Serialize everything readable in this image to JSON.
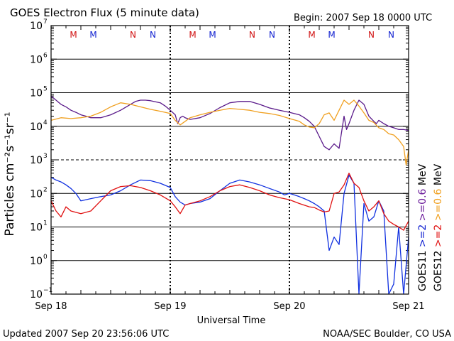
{
  "header": {
    "title": "GOES Electron Flux (5 minute data)",
    "begin": "Begin: 2007 Sep 18 0000 UTC"
  },
  "footer": {
    "updated": "Updated 2007 Sep 20 23:56:06 UTC",
    "source": "NOAA/SEC Boulder, CO USA"
  },
  "chart_data": {
    "type": "line",
    "title": "GOES Electron Flux (5 minute data)",
    "xlabel": "Universal Time",
    "ylabel": "Particles cm⁻²s⁻¹sr⁻¹",
    "yscale": "log",
    "ylim": [
      0.1,
      10000000
    ],
    "xlim": [
      0,
      72
    ],
    "x_unit": "hours since 2007 Sep 18 0000 UTC",
    "x_ticks": [
      {
        "x": 0,
        "label": "Sep 18"
      },
      {
        "x": 24,
        "label": "Sep 19"
      },
      {
        "x": 48,
        "label": "Sep 20"
      },
      {
        "x": 72,
        "label": "Sep 21"
      }
    ],
    "y_ticks": [
      {
        "exp": 7
      },
      {
        "exp": 6
      },
      {
        "exp": 5
      },
      {
        "exp": 4
      },
      {
        "exp": 3
      },
      {
        "exp": 2
      },
      {
        "exp": 1
      },
      {
        "exp": 0
      },
      {
        "exp": -1
      }
    ],
    "grid": true,
    "dashed_grid_exp": [
      3
    ],
    "magnetopause_markers": [
      {
        "x": 4.5,
        "label": "M",
        "color": "#d01010"
      },
      {
        "x": 8.5,
        "label": "M",
        "color": "#1020d0"
      },
      {
        "x": 16.5,
        "label": "N",
        "color": "#d01010"
      },
      {
        "x": 20.5,
        "label": "N",
        "color": "#1020d0"
      },
      {
        "x": 28.5,
        "label": "M",
        "color": "#d01010"
      },
      {
        "x": 32.5,
        "label": "M",
        "color": "#1020d0"
      },
      {
        "x": 40.5,
        "label": "N",
        "color": "#d01010"
      },
      {
        "x": 44.5,
        "label": "N",
        "color": "#1020d0"
      },
      {
        "x": 52.5,
        "label": "M",
        "color": "#d01010"
      },
      {
        "x": 56.5,
        "label": "M",
        "color": "#1020d0"
      },
      {
        "x": 64.5,
        "label": "N",
        "color": "#d01010"
      },
      {
        "x": 68.5,
        "label": "N",
        "color": "#1020d0"
      }
    ],
    "right_labels": [
      {
        "satellite": "GOES11",
        "low": ">=2",
        "high": ">=0.6",
        "unit": "MeV",
        "color_low": "#1020d0",
        "color_high": "#6a1a9a"
      },
      {
        "satellite": "GOES12",
        "low": ">=2",
        "high": ">=0.6",
        "unit": "MeV",
        "color_low": "#e01010",
        "color_high": "#f0a020"
      }
    ],
    "series": [
      {
        "name": ">=0.6 MeV GOES11",
        "color": "#5a1a8a",
        "x": [
          0,
          1,
          2,
          3,
          4,
          5,
          6,
          7,
          8,
          10,
          12,
          14,
          16,
          17,
          18,
          19,
          20,
          22,
          23,
          24,
          25,
          25.5,
          26,
          26.5,
          27,
          28,
          30,
          32,
          34,
          36,
          38,
          40,
          42,
          44,
          46,
          48,
          50,
          51,
          52,
          53,
          54,
          55,
          56,
          57,
          58,
          59,
          59.5,
          60,
          61,
          62,
          63,
          64,
          65,
          65.5,
          66,
          67,
          68,
          69,
          70,
          71,
          72
        ],
        "y": [
          80000,
          60000,
          45000,
          38000,
          30000,
          26000,
          22000,
          20000,
          18000,
          18000,
          22000,
          30000,
          45000,
          55000,
          60000,
          60000,
          58000,
          50000,
          40000,
          30000,
          22000,
          12000,
          18000,
          20000,
          18000,
          16000,
          18000,
          24000,
          36000,
          50000,
          55000,
          55000,
          45000,
          35000,
          30000,
          26000,
          22000,
          18000,
          14000,
          10000,
          5000,
          2500,
          2000,
          3000,
          2200,
          20000,
          8000,
          12000,
          30000,
          60000,
          45000,
          20000,
          14000,
          12000,
          15000,
          12000,
          10000,
          9000,
          8000,
          8000,
          7500
        ]
      },
      {
        "name": ">=0.6 MeV GOES12",
        "color": "#f0a020",
        "x": [
          0,
          2,
          4,
          6,
          8,
          10,
          12,
          14,
          16,
          18,
          20,
          22,
          24,
          25,
          26,
          27,
          28,
          30,
          32,
          34,
          36,
          38,
          40,
          42,
          44,
          46,
          48,
          50,
          51,
          52,
          53,
          54,
          55,
          56,
          57,
          58,
          59,
          60,
          61,
          62,
          63,
          64,
          65,
          66,
          67,
          68,
          69,
          70,
          71,
          71.5,
          72
        ],
        "y": [
          15000,
          18000,
          17000,
          18000,
          20000,
          26000,
          38000,
          50000,
          45000,
          38000,
          32000,
          28000,
          24000,
          15000,
          11000,
          14000,
          18000,
          22000,
          26000,
          30000,
          34000,
          32000,
          30000,
          26000,
          24000,
          21000,
          17000,
          14000,
          11000,
          9500,
          9000,
          12000,
          22000,
          25000,
          15000,
          30000,
          60000,
          45000,
          60000,
          40000,
          25000,
          15000,
          13000,
          9000,
          8000,
          6000,
          5500,
          4000,
          2500,
          700,
          2000
        ]
      },
      {
        "name": ">=2 MeV GOES11",
        "color": "#1030e0",
        "x": [
          0,
          1,
          2,
          3,
          4,
          5,
          6,
          8,
          10,
          12,
          14,
          16,
          18,
          20,
          22,
          24,
          25,
          26,
          27,
          28,
          30,
          32,
          34,
          36,
          38,
          40,
          42,
          44,
          46,
          47,
          48,
          49,
          50,
          51,
          52,
          53,
          54,
          55,
          56,
          57,
          58,
          59,
          60,
          61,
          62,
          63,
          64,
          65,
          66,
          67,
          68,
          69,
          70,
          71,
          72
        ],
        "y": [
          300,
          250,
          220,
          180,
          140,
          100,
          60,
          70,
          80,
          90,
          120,
          180,
          250,
          240,
          200,
          150,
          80,
          55,
          45,
          50,
          55,
          70,
          120,
          200,
          250,
          220,
          180,
          140,
          110,
          90,
          100,
          90,
          80,
          70,
          60,
          50,
          40,
          30,
          2,
          5,
          3,
          100,
          350,
          200,
          0.1,
          50,
          15,
          20,
          60,
          30,
          0.1,
          0.2,
          10,
          0.1,
          5
        ]
      },
      {
        "name": ">=2 MeV GOES12",
        "color": "#e01010",
        "x": [
          0,
          1,
          2,
          3,
          4,
          6,
          8,
          10,
          12,
          14,
          16,
          18,
          20,
          22,
          24,
          25,
          26,
          27,
          28,
          30,
          32,
          34,
          36,
          38,
          40,
          42,
          44,
          46,
          48,
          50,
          52,
          53,
          54,
          55,
          56,
          57,
          58,
          59,
          60,
          61,
          62,
          63,
          64,
          65,
          66,
          67,
          68,
          69,
          70,
          71,
          72
        ],
        "y": [
          60,
          30,
          20,
          40,
          30,
          25,
          30,
          60,
          120,
          160,
          170,
          150,
          120,
          90,
          60,
          40,
          25,
          45,
          50,
          60,
          80,
          120,
          160,
          180,
          150,
          120,
          90,
          75,
          65,
          50,
          40,
          38,
          32,
          28,
          30,
          100,
          110,
          180,
          400,
          200,
          150,
          60,
          30,
          40,
          60,
          25,
          15,
          12,
          10,
          8,
          15
        ]
      }
    ]
  }
}
